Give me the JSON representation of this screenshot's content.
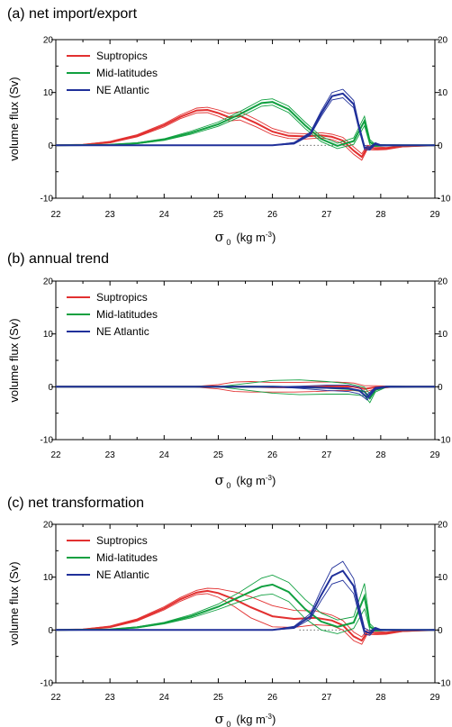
{
  "chart_data": [
    {
      "type": "line",
      "title": "(a) net import/export",
      "ylabel": "volume flux (Sv)",
      "xlabel": {
        "symbol": "σ",
        "sub": "0",
        "unit_pre": "(kg m",
        "unit_sup": "-3",
        "unit_post": ")"
      },
      "xlim": [
        22,
        29
      ],
      "ylim": [
        -10,
        20
      ],
      "xticks": [
        "22",
        "23",
        "24",
        "25",
        "26",
        "27",
        "28",
        "29"
      ],
      "yticks": [
        "-10",
        "0",
        "10",
        "20"
      ],
      "reference_line": {
        "y": 0,
        "x_range": [
          26.5,
          27.5
        ],
        "style": "dotted"
      },
      "legend_position": "top-left",
      "series": [
        {
          "name": "Suptropics",
          "color": "#e23030",
          "x": [
            22,
            22.5,
            23,
            23.5,
            24,
            24.3,
            24.6,
            24.8,
            25,
            25.2,
            25.4,
            25.7,
            26,
            26.3,
            26.6,
            26.9,
            27.1,
            27.3,
            27.5,
            27.65,
            27.75,
            27.9,
            28.1,
            28.4,
            29
          ],
          "y": [
            0,
            0.1,
            0.6,
            1.8,
            3.8,
            5.4,
            6.6,
            6.7,
            6.1,
            5.3,
            5.6,
            4.2,
            2.6,
            1.8,
            1.7,
            1.9,
            1.6,
            0.9,
            -1.0,
            -2.2,
            -0.4,
            -0.6,
            -0.6,
            -0.2,
            0
          ],
          "band": [
            0,
            0.05,
            0.15,
            0.2,
            0.3,
            0.35,
            0.45,
            0.5,
            0.6,
            0.7,
            0.8,
            0.7,
            0.6,
            0.5,
            0.5,
            0.5,
            0.5,
            0.6,
            0.7,
            0.6,
            0.4,
            0.3,
            0.2,
            0.1,
            0
          ]
        },
        {
          "name": "Mid-latitudes",
          "color": "#10a040",
          "x": [
            22,
            23,
            23.5,
            24,
            24.5,
            25,
            25.4,
            25.8,
            26,
            26.3,
            26.6,
            26.9,
            27.2,
            27.5,
            27.7,
            27.8,
            27.9,
            28.1,
            29
          ],
          "y": [
            0,
            0.1,
            0.4,
            1.1,
            2.4,
            4.0,
            5.9,
            8.0,
            8.2,
            6.8,
            3.8,
            1.2,
            -0.1,
            0.8,
            4.6,
            0.6,
            0,
            0,
            0
          ],
          "band": [
            0,
            0.05,
            0.1,
            0.15,
            0.3,
            0.4,
            0.5,
            0.6,
            0.6,
            0.6,
            0.6,
            0.5,
            0.5,
            0.6,
            0.9,
            0.5,
            0.2,
            0.1,
            0
          ]
        },
        {
          "name": "NE Atlantic",
          "color": "#20309a",
          "x": [
            22,
            25,
            26,
            26.4,
            26.7,
            26.9,
            27.1,
            27.3,
            27.5,
            27.6,
            27.7,
            27.8,
            27.9,
            28,
            29
          ],
          "y": [
            0,
            0,
            0,
            0.4,
            2.2,
            6.0,
            9.3,
            9.8,
            7.8,
            3.4,
            -0.4,
            -0.6,
            0.3,
            0,
            0
          ],
          "band": [
            0,
            0,
            0,
            0.15,
            0.3,
            0.5,
            0.7,
            0.8,
            0.7,
            0.5,
            0.4,
            0.3,
            0.2,
            0.1,
            0
          ]
        }
      ]
    },
    {
      "type": "line",
      "title": "(b) annual trend",
      "ylabel": "volume flux (Sv)",
      "xlabel": {
        "symbol": "σ",
        "sub": "0",
        "unit_pre": "(kg m",
        "unit_sup": "-3",
        "unit_post": ")"
      },
      "xlim": [
        22,
        29
      ],
      "ylim": [
        -10,
        20
      ],
      "xticks": [
        "22",
        "23",
        "24",
        "25",
        "26",
        "27",
        "28",
        "29"
      ],
      "yticks": [
        "-10",
        "0",
        "10",
        "20"
      ],
      "legend_position": "top-left",
      "series": [
        {
          "name": "Suptropics",
          "color": "#e23030",
          "x": [
            22,
            24.5,
            25,
            25.3,
            25.6,
            26,
            26.4,
            26.8,
            27.2,
            27.5,
            27.7,
            27.9,
            28.2,
            29
          ],
          "y": [
            0,
            0,
            0,
            0,
            0,
            -0.1,
            -0.1,
            0,
            0.1,
            0,
            -0.4,
            -0.1,
            0,
            0
          ],
          "band": [
            0,
            0,
            0.4,
            0.9,
            1.0,
            0.9,
            0.9,
            0.9,
            0.8,
            0.7,
            0.6,
            0.3,
            0.1,
            0
          ]
        },
        {
          "name": "Mid-latitudes",
          "color": "#10a040",
          "x": [
            22,
            25,
            25.5,
            26,
            26.5,
            27,
            27.4,
            27.7,
            27.8,
            27.9,
            28.1,
            29
          ],
          "y": [
            0,
            0,
            0,
            0,
            -0.1,
            -0.2,
            -0.4,
            -0.9,
            -2.2,
            -0.6,
            0,
            0
          ],
          "band": [
            0,
            0,
            0.6,
            1.2,
            1.4,
            1.2,
            1.0,
            0.8,
            0.8,
            0.4,
            0.1,
            0
          ]
        },
        {
          "name": "NE Atlantic",
          "color": "#20309a",
          "x": [
            22,
            26,
            26.5,
            27,
            27.4,
            27.6,
            27.75,
            27.9,
            28.1,
            29
          ],
          "y": [
            0,
            0,
            -0.1,
            -0.2,
            -0.3,
            -0.7,
            -2.0,
            -0.3,
            0,
            0
          ],
          "band": [
            0,
            0,
            0.2,
            0.5,
            0.6,
            0.6,
            0.5,
            0.2,
            0.1,
            0
          ]
        }
      ]
    },
    {
      "type": "line",
      "title": "(c) net transformation",
      "ylabel": "volume flux (Sv)",
      "xlabel": {
        "symbol": "σ",
        "sub": "0",
        "unit_pre": "(kg m",
        "unit_sup": "-3",
        "unit_post": ")"
      },
      "xlim": [
        22,
        29
      ],
      "ylim": [
        -10,
        20
      ],
      "xticks": [
        "22",
        "23",
        "24",
        "25",
        "26",
        "27",
        "28",
        "29"
      ],
      "yticks": [
        "-10",
        "0",
        "10",
        "20"
      ],
      "reference_line": {
        "y": 0,
        "x_range": [
          26.5,
          27.5
        ],
        "style": "dotted"
      },
      "legend_position": "top-left",
      "series": [
        {
          "name": "Suptropics",
          "color": "#e23030",
          "x": [
            22,
            22.5,
            23,
            23.5,
            24,
            24.3,
            24.6,
            24.8,
            25,
            25.3,
            25.6,
            26,
            26.4,
            26.8,
            27.1,
            27.3,
            27.5,
            27.65,
            27.75,
            27.9,
            28.1,
            28.4,
            29
          ],
          "y": [
            0,
            0.1,
            0.6,
            1.9,
            4.1,
            5.8,
            7.1,
            7.4,
            7.0,
            5.8,
            4.3,
            2.6,
            2.1,
            2.3,
            1.8,
            0.9,
            -1.2,
            -2.0,
            -0.4,
            -0.6,
            -0.6,
            -0.2,
            0
          ],
          "band": [
            0,
            0.05,
            0.15,
            0.2,
            0.3,
            0.35,
            0.4,
            0.5,
            0.8,
            1.4,
            2.0,
            2.0,
            1.6,
            1.3,
            1.0,
            0.9,
            0.8,
            0.7,
            0.4,
            0.3,
            0.2,
            0.1,
            0
          ]
        },
        {
          "name": "Mid-latitudes",
          "color": "#10a040",
          "x": [
            22,
            23,
            23.5,
            24,
            24.5,
            25,
            25.4,
            25.8,
            26,
            26.3,
            26.6,
            26.9,
            27.2,
            27.5,
            27.7,
            27.8,
            27.9,
            28.1,
            29
          ],
          "y": [
            0,
            0.1,
            0.5,
            1.3,
            2.6,
            4.4,
            6.3,
            8.2,
            8.6,
            7.2,
            4.0,
            1.6,
            0.6,
            1.4,
            6.4,
            0.6,
            0,
            0,
            0
          ],
          "band": [
            0,
            0.05,
            0.1,
            0.15,
            0.3,
            0.5,
            0.9,
            1.6,
            1.8,
            1.8,
            1.8,
            1.6,
            1.3,
            1.1,
            2.4,
            0.6,
            0.2,
            0.1,
            0
          ]
        },
        {
          "name": "NE Atlantic",
          "color": "#20309a",
          "x": [
            22,
            25,
            26,
            26.4,
            26.7,
            26.9,
            27.1,
            27.3,
            27.5,
            27.6,
            27.7,
            27.8,
            27.9,
            28,
            29
          ],
          "y": [
            0,
            0,
            0,
            0.5,
            2.6,
            6.6,
            10.2,
            11.2,
            8.3,
            3.8,
            -0.2,
            -0.6,
            0.3,
            0,
            0
          ],
          "band": [
            0,
            0,
            0,
            0.2,
            0.5,
            1.0,
            1.5,
            1.8,
            1.4,
            0.9,
            0.6,
            0.4,
            0.2,
            0.1,
            0
          ]
        }
      ]
    }
  ]
}
